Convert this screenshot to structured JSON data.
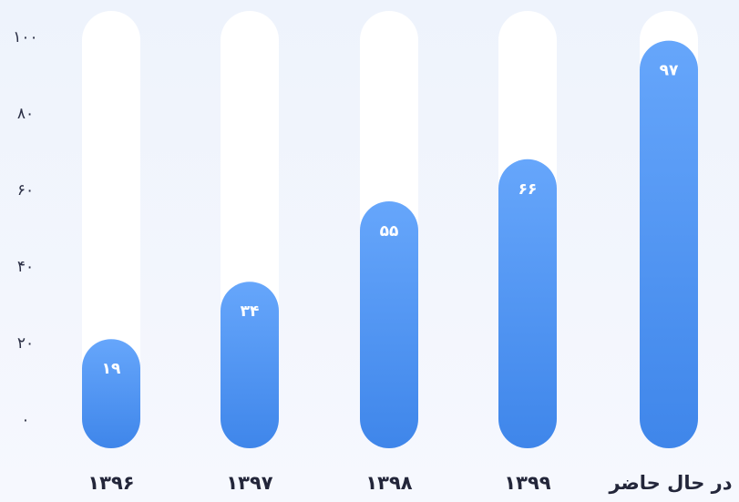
{
  "chart_data": {
    "type": "bar",
    "categories": [
      "۱۳۹۶",
      "۱۳۹۷",
      "۱۳۹۸",
      "۱۳۹۹",
      "در حال حاضر"
    ],
    "values": [
      19,
      34,
      55,
      66,
      97
    ],
    "value_labels": [
      "۱۹",
      "۳۴",
      "۵۵",
      "۶۶",
      "۹۷"
    ],
    "y_ticks": [
      0,
      20,
      40,
      60,
      80,
      100
    ],
    "y_tick_labels": [
      "۰",
      "۲۰",
      "۴۰",
      "۶۰",
      "۸۰",
      "۱۰۰"
    ],
    "ylim": [
      0,
      100
    ],
    "grid": false,
    "colors": {
      "bar_top": "#66a6fb",
      "bar_bottom": "#3f86ea",
      "track": "#ffffff"
    }
  }
}
